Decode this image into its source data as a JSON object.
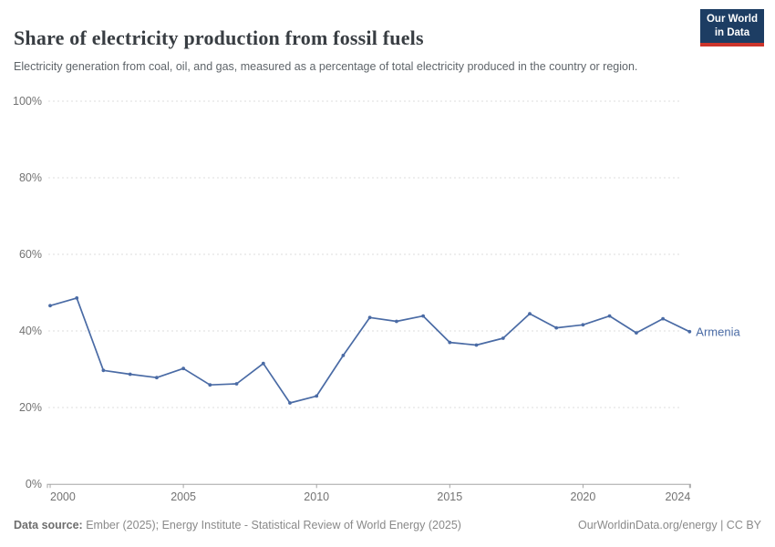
{
  "header": {
    "title": "Share of electricity production from fossil fuels",
    "subtitle": "Electricity generation from coal, oil, and gas, measured as a percentage of total electricity produced in the country or region.",
    "logo": {
      "line1": "Our World",
      "line2": "in Data"
    }
  },
  "chart_data": {
    "type": "line",
    "title": "Share of electricity production from fossil fuels",
    "x": [
      2000,
      2001,
      2002,
      2003,
      2004,
      2005,
      2006,
      2007,
      2008,
      2009,
      2010,
      2011,
      2012,
      2013,
      2014,
      2015,
      2016,
      2017,
      2018,
      2019,
      2020,
      2021,
      2022,
      2023,
      2024
    ],
    "series": [
      {
        "name": "Armenia",
        "color": "#4a6ba5",
        "values": [
          46.6,
          48.6,
          29.7,
          28.7,
          27.8,
          30.2,
          25.9,
          26.2,
          31.5,
          21.2,
          23.0,
          33.6,
          43.5,
          42.5,
          43.9,
          37.0,
          36.3,
          38.1,
          44.5,
          40.8,
          41.6,
          43.9,
          39.5,
          43.2,
          39.8
        ]
      }
    ],
    "xlabel": "",
    "ylabel": "",
    "ylim": [
      0,
      100
    ],
    "yticks": [
      0,
      20,
      40,
      60,
      80,
      100
    ],
    "ytick_suffix": "%",
    "xticks": [
      2000,
      2005,
      2010,
      2015,
      2020,
      2024
    ],
    "grid": "dashed-horizontal",
    "legend": "end-of-line-label"
  },
  "colors": {
    "line": "#4a6ba5",
    "gridline": "#dcdcdc",
    "axis": "#a5a5a5",
    "tick_label": "#737373",
    "title": "#383d42",
    "subtitle": "#5f656a",
    "footer": "#8a8a8a",
    "logo_bg": "#1d3d63",
    "logo_red": "#cc352b"
  },
  "footer": {
    "datasource_label": "Data source:",
    "datasource_text": " Ember (2025); Energy Institute - Statistical Review of World Energy (2025)",
    "link_text": "OurWorldinData.org/energy | CC BY"
  }
}
